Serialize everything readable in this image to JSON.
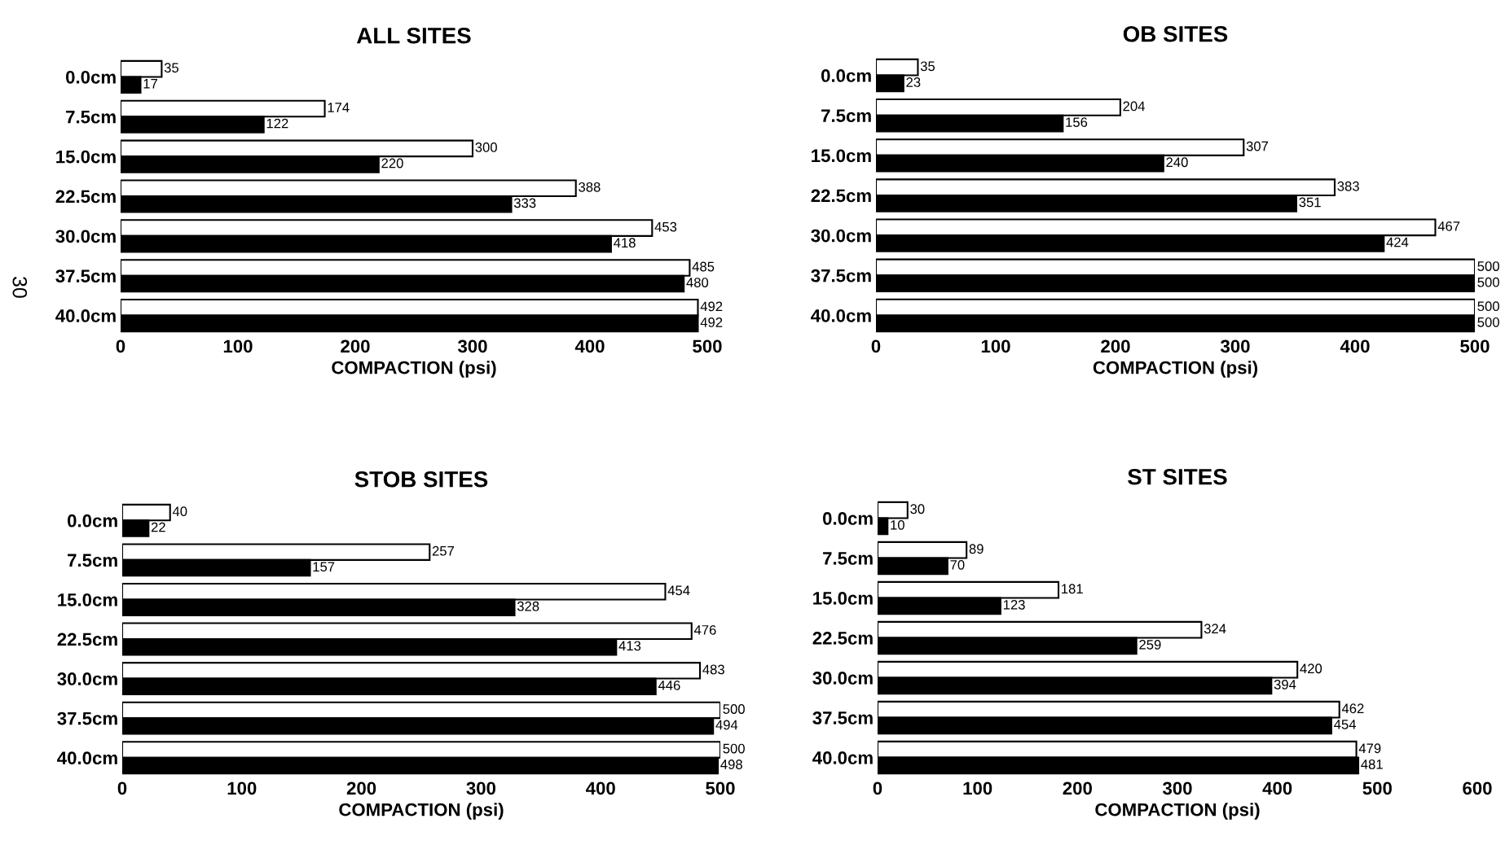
{
  "chart_data": [
    {
      "type": "bar",
      "orientation": "horizontal",
      "title": "ALL SITES",
      "xlabel": "COMPACTION (psi)",
      "categories": [
        "0.0cm",
        "7.5cm",
        "15.0cm",
        "22.5cm",
        "30.0cm",
        "37.5cm",
        "40.0cm"
      ],
      "series": [
        {
          "color": "#ffffff",
          "values": [
            35,
            174,
            300,
            388,
            453,
            485,
            492
          ]
        },
        {
          "color": "#000000",
          "values": [
            17,
            122,
            220,
            333,
            418,
            480,
            492
          ]
        }
      ],
      "xlim": [
        0,
        500
      ],
      "xticks": [
        0,
        100,
        200,
        300,
        400,
        500
      ],
      "data_labels": true,
      "grid": false,
      "legend": false,
      "annotations": [
        "30"
      ]
    },
    {
      "type": "bar",
      "orientation": "horizontal",
      "title": "OB SITES",
      "xlabel": "COMPACTION (psi)",
      "categories": [
        "0.0cm",
        "7.5cm",
        "15.0cm",
        "22.5cm",
        "30.0cm",
        "37.5cm",
        "40.0cm"
      ],
      "series": [
        {
          "color": "#ffffff",
          "values": [
            35,
            204,
            307,
            383,
            467,
            500,
            500
          ]
        },
        {
          "color": "#000000",
          "values": [
            23,
            156,
            240,
            351,
            424,
            500,
            500
          ]
        }
      ],
      "xlim": [
        0,
        500
      ],
      "xticks": [
        0,
        100,
        200,
        300,
        400,
        500
      ],
      "data_labels": true,
      "grid": false,
      "legend": false
    },
    {
      "type": "bar",
      "orientation": "horizontal",
      "title": "STOB SITES",
      "xlabel": "COMPACTION (psi)",
      "categories": [
        "0.0cm",
        "7.5cm",
        "15.0cm",
        "22.5cm",
        "30.0cm",
        "37.5cm",
        "40.0cm"
      ],
      "series": [
        {
          "color": "#ffffff",
          "values": [
            40,
            257,
            454,
            476,
            483,
            500,
            500
          ]
        },
        {
          "color": "#000000",
          "values": [
            22,
            157,
            328,
            413,
            446,
            494,
            498
          ]
        }
      ],
      "xlim": [
        0,
        500
      ],
      "xticks": [
        0,
        100,
        200,
        300,
        400,
        500
      ],
      "data_labels": true,
      "grid": false,
      "legend": false
    },
    {
      "type": "bar",
      "orientation": "horizontal",
      "title": "ST SITES",
      "xlabel": "COMPACTION (psi)",
      "categories": [
        "0.0cm",
        "7.5cm",
        "15.0cm",
        "22.5cm",
        "30.0cm",
        "37.5cm",
        "40.0cm"
      ],
      "series": [
        {
          "color": "#ffffff",
          "values": [
            30,
            89,
            181,
            324,
            420,
            462,
            479
          ]
        },
        {
          "color": "#000000",
          "values": [
            10,
            70,
            123,
            259,
            394,
            454,
            481
          ]
        }
      ],
      "xlim": [
        0,
        600
      ],
      "xticks": [
        0,
        100,
        200,
        300,
        400,
        500,
        600
      ],
      "data_labels": true,
      "grid": false,
      "legend": false
    }
  ]
}
